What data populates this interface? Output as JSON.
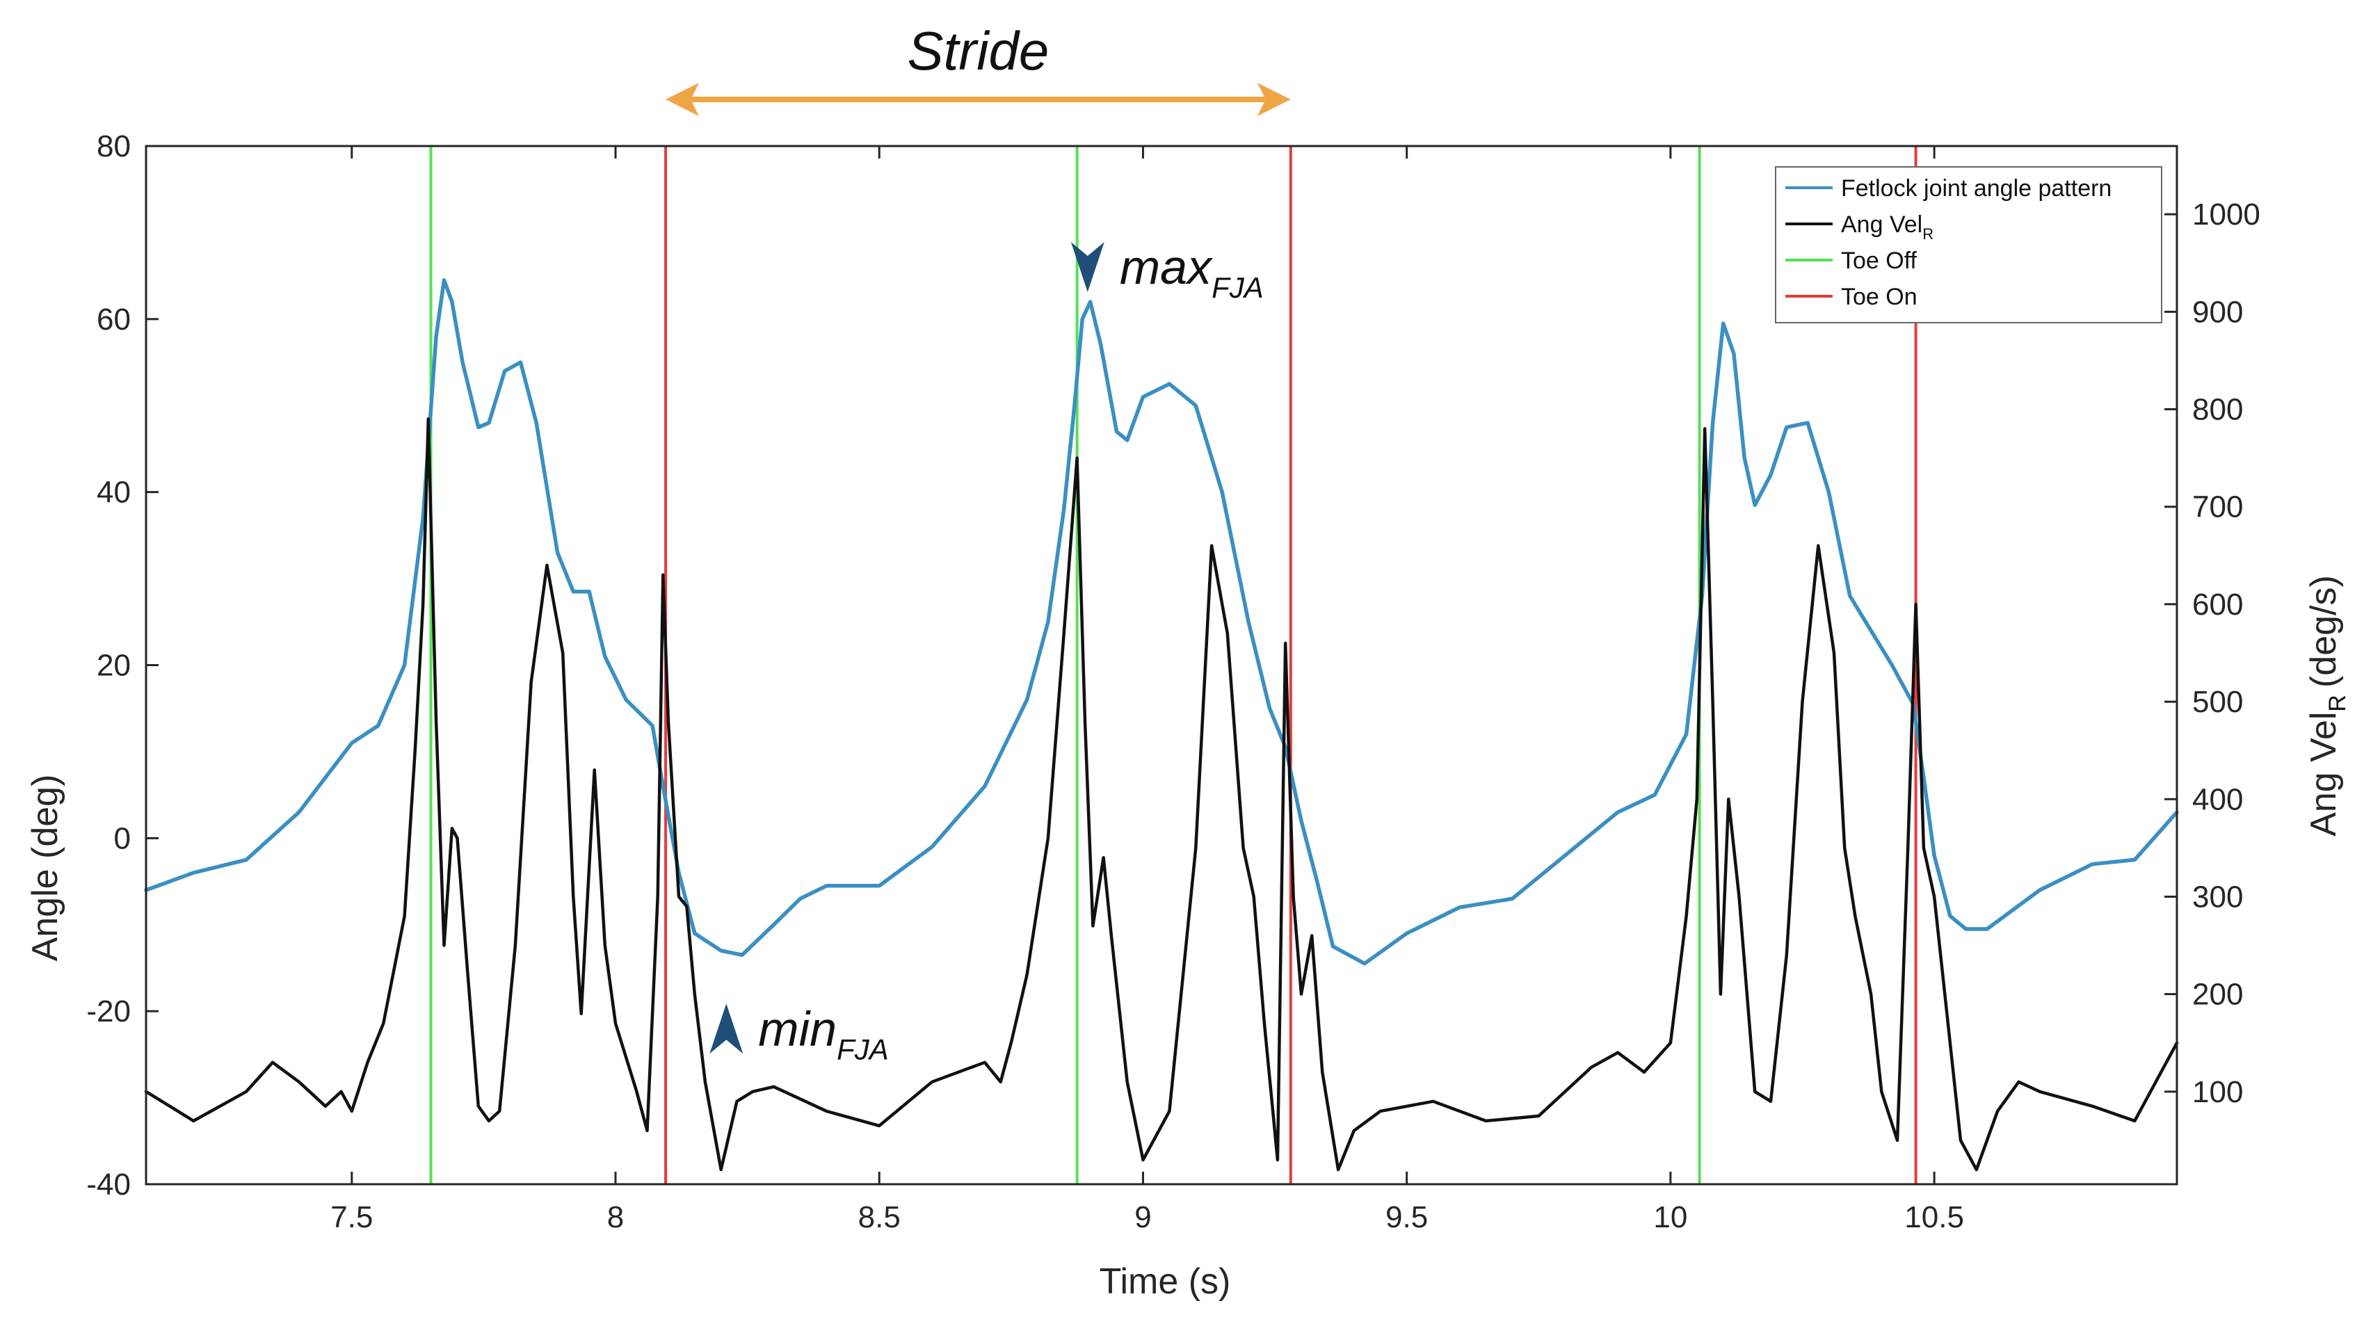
{
  "chart_data": {
    "type": "line",
    "xlabel": "Time (s)",
    "ylabel_left": "Angle (deg)",
    "ylabel_right": "Ang Vel",
    "ylabel_right_sub": "R",
    "ylabel_right_unit": "(deg/s)",
    "xlim": [
      7.11,
      10.96
    ],
    "ylim_left": [
      -40,
      80
    ],
    "ylim_right": [
      5,
      1070
    ],
    "x_ticks": [
      7.5,
      8,
      8.5,
      9,
      9.5,
      10,
      10.5
    ],
    "x_tick_labels": [
      "7.5",
      "8",
      "8.5",
      "9",
      "9.5",
      "10",
      "10.5"
    ],
    "y_left_ticks": [
      -40,
      -20,
      0,
      20,
      40,
      60,
      80
    ],
    "y_left_tick_labels": [
      "-40",
      "-20",
      "0",
      "20",
      "40",
      "60",
      "80"
    ],
    "y_right_ticks": [
      100,
      200,
      300,
      400,
      500,
      600,
      700,
      800,
      900,
      1000
    ],
    "y_right_tick_labels": [
      "100",
      "200",
      "300",
      "400",
      "500",
      "600",
      "700",
      "800",
      "900",
      "1000"
    ],
    "series": [
      {
        "name": "Fetlock joint angle pattern",
        "axis": "left",
        "color": "#3a8fc3",
        "points": [
          [
            7.11,
            -6
          ],
          [
            7.2,
            -4
          ],
          [
            7.3,
            -2.5
          ],
          [
            7.4,
            3
          ],
          [
            7.5,
            11
          ],
          [
            7.55,
            13
          ],
          [
            7.6,
            20
          ],
          [
            7.635,
            37
          ],
          [
            7.66,
            58
          ],
          [
            7.675,
            64.5
          ],
          [
            7.69,
            62
          ],
          [
            7.71,
            55
          ],
          [
            7.74,
            47.5
          ],
          [
            7.76,
            48
          ],
          [
            7.79,
            54
          ],
          [
            7.82,
            55
          ],
          [
            7.85,
            48
          ],
          [
            7.89,
            33
          ],
          [
            7.92,
            28.5
          ],
          [
            7.95,
            28.5
          ],
          [
            7.98,
            21
          ],
          [
            8.02,
            16
          ],
          [
            8.07,
            13
          ],
          [
            8.09,
            6
          ],
          [
            8.12,
            -4
          ],
          [
            8.15,
            -11
          ],
          [
            8.2,
            -13
          ],
          [
            8.24,
            -13.5
          ],
          [
            8.3,
            -10
          ],
          [
            8.35,
            -7
          ],
          [
            8.4,
            -5.5
          ],
          [
            8.5,
            -5.5
          ],
          [
            8.6,
            -1
          ],
          [
            8.7,
            6
          ],
          [
            8.78,
            16
          ],
          [
            8.82,
            25
          ],
          [
            8.85,
            38
          ],
          [
            8.87,
            50
          ],
          [
            8.885,
            60
          ],
          [
            8.9,
            62
          ],
          [
            8.92,
            57
          ],
          [
            8.95,
            47
          ],
          [
            8.97,
            46
          ],
          [
            9.0,
            51
          ],
          [
            9.05,
            52.5
          ],
          [
            9.1,
            50
          ],
          [
            9.15,
            40
          ],
          [
            9.2,
            25
          ],
          [
            9.24,
            15
          ],
          [
            9.27,
            10.5
          ],
          [
            9.3,
            2
          ],
          [
            9.33,
            -5
          ],
          [
            9.36,
            -12.5
          ],
          [
            9.42,
            -14.5
          ],
          [
            9.5,
            -11
          ],
          [
            9.6,
            -8
          ],
          [
            9.7,
            -7
          ],
          [
            9.8,
            -2
          ],
          [
            9.9,
            3
          ],
          [
            9.97,
            5
          ],
          [
            10.03,
            12
          ],
          [
            10.06,
            28
          ],
          [
            10.08,
            48
          ],
          [
            10.1,
            59.5
          ],
          [
            10.12,
            56
          ],
          [
            10.14,
            44
          ],
          [
            10.16,
            38.5
          ],
          [
            10.19,
            42
          ],
          [
            10.22,
            47.5
          ],
          [
            10.26,
            48
          ],
          [
            10.3,
            40
          ],
          [
            10.34,
            28
          ],
          [
            10.37,
            25
          ],
          [
            10.42,
            20
          ],
          [
            10.46,
            15.5
          ],
          [
            10.48,
            7
          ],
          [
            10.5,
            -2
          ],
          [
            10.53,
            -9
          ],
          [
            10.56,
            -10.5
          ],
          [
            10.6,
            -10.5
          ],
          [
            10.7,
            -6
          ],
          [
            10.8,
            -3
          ],
          [
            10.88,
            -2.5
          ],
          [
            10.96,
            3
          ]
        ]
      },
      {
        "name": "Ang Vel",
        "name_sub": "R",
        "axis": "right",
        "color": "#111111",
        "points": [
          [
            7.11,
            100
          ],
          [
            7.2,
            70
          ],
          [
            7.3,
            100
          ],
          [
            7.35,
            130
          ],
          [
            7.4,
            110
          ],
          [
            7.45,
            85
          ],
          [
            7.48,
            100
          ],
          [
            7.5,
            80
          ],
          [
            7.53,
            130
          ],
          [
            7.56,
            170
          ],
          [
            7.6,
            280
          ],
          [
            7.62,
            450
          ],
          [
            7.635,
            600
          ],
          [
            7.645,
            790
          ],
          [
            7.66,
            480
          ],
          [
            7.675,
            250
          ],
          [
            7.69,
            370
          ],
          [
            7.7,
            360
          ],
          [
            7.72,
            220
          ],
          [
            7.74,
            85
          ],
          [
            7.76,
            70
          ],
          [
            7.78,
            80
          ],
          [
            7.81,
            250
          ],
          [
            7.84,
            520
          ],
          [
            7.87,
            640
          ],
          [
            7.9,
            550
          ],
          [
            7.92,
            300
          ],
          [
            7.935,
            180
          ],
          [
            7.96,
            430
          ],
          [
            7.98,
            250
          ],
          [
            8.0,
            170
          ],
          [
            8.04,
            100
          ],
          [
            8.06,
            60
          ],
          [
            8.08,
            300
          ],
          [
            8.09,
            630
          ],
          [
            8.1,
            480
          ],
          [
            8.12,
            300
          ],
          [
            8.135,
            290
          ],
          [
            8.15,
            200
          ],
          [
            8.17,
            110
          ],
          [
            8.2,
            20
          ],
          [
            8.23,
            90
          ],
          [
            8.26,
            100
          ],
          [
            8.3,
            105
          ],
          [
            8.4,
            80
          ],
          [
            8.5,
            65
          ],
          [
            8.6,
            110
          ],
          [
            8.7,
            130
          ],
          [
            8.73,
            110
          ],
          [
            8.75,
            150
          ],
          [
            8.78,
            220
          ],
          [
            8.82,
            360
          ],
          [
            8.85,
            570
          ],
          [
            8.875,
            750
          ],
          [
            8.89,
            480
          ],
          [
            8.905,
            270
          ],
          [
            8.925,
            340
          ],
          [
            8.94,
            260
          ],
          [
            8.97,
            110
          ],
          [
            9.0,
            30
          ],
          [
            9.05,
            80
          ],
          [
            9.1,
            350
          ],
          [
            9.13,
            660
          ],
          [
            9.16,
            570
          ],
          [
            9.19,
            350
          ],
          [
            9.21,
            300
          ],
          [
            9.23,
            170
          ],
          [
            9.255,
            30
          ],
          [
            9.27,
            560
          ],
          [
            9.285,
            300
          ],
          [
            9.3,
            200
          ],
          [
            9.32,
            260
          ],
          [
            9.34,
            120
          ],
          [
            9.37,
            20
          ],
          [
            9.4,
            60
          ],
          [
            9.45,
            80
          ],
          [
            9.55,
            90
          ],
          [
            9.65,
            70
          ],
          [
            9.75,
            75
          ],
          [
            9.85,
            125
          ],
          [
            9.9,
            140
          ],
          [
            9.95,
            120
          ],
          [
            10.0,
            150
          ],
          [
            10.03,
            280
          ],
          [
            10.05,
            400
          ],
          [
            10.065,
            780
          ],
          [
            10.08,
            500
          ],
          [
            10.095,
            200
          ],
          [
            10.11,
            400
          ],
          [
            10.13,
            300
          ],
          [
            10.16,
            100
          ],
          [
            10.19,
            90
          ],
          [
            10.22,
            240
          ],
          [
            10.25,
            500
          ],
          [
            10.28,
            660
          ],
          [
            10.31,
            550
          ],
          [
            10.33,
            350
          ],
          [
            10.35,
            280
          ],
          [
            10.38,
            200
          ],
          [
            10.4,
            100
          ],
          [
            10.43,
            50
          ],
          [
            10.45,
            350
          ],
          [
            10.465,
            600
          ],
          [
            10.48,
            350
          ],
          [
            10.5,
            300
          ],
          [
            10.52,
            200
          ],
          [
            10.55,
            50
          ],
          [
            10.58,
            20
          ],
          [
            10.62,
            80
          ],
          [
            10.66,
            110
          ],
          [
            10.7,
            100
          ],
          [
            10.8,
            85
          ],
          [
            10.88,
            70
          ],
          [
            10.96,
            150
          ]
        ]
      }
    ],
    "vlines": [
      {
        "name": "Toe Off",
        "color": "#55e055",
        "x": [
          7.65,
          8.875,
          10.055
        ]
      },
      {
        "name": "Toe On",
        "color": "#e83a3a",
        "x": [
          8.095,
          9.28,
          10.465
        ]
      }
    ],
    "legend": {
      "placement": "top-right",
      "entries": [
        {
          "label": "Fetlock joint angle pattern",
          "sub": "",
          "color": "#3a8fc3"
        },
        {
          "label": "Ang Vel",
          "sub": "R",
          "color": "#111111"
        },
        {
          "label": "Toe Off",
          "sub": "",
          "color": "#55e055"
        },
        {
          "label": "Toe On",
          "sub": "",
          "color": "#e83a3a"
        }
      ]
    },
    "annotations": {
      "stride": {
        "label": "Stride",
        "x_from": 8.095,
        "x_to": 9.28,
        "color": "#f0a545"
      },
      "max": {
        "label": "max",
        "sub": "FJA",
        "x": 8.895,
        "y": 62,
        "marker_color": "#1f4e79"
      },
      "min": {
        "label": "min",
        "sub": "FJA",
        "x": 8.21,
        "y": -13.5,
        "marker_color": "#1f4e79"
      }
    }
  }
}
